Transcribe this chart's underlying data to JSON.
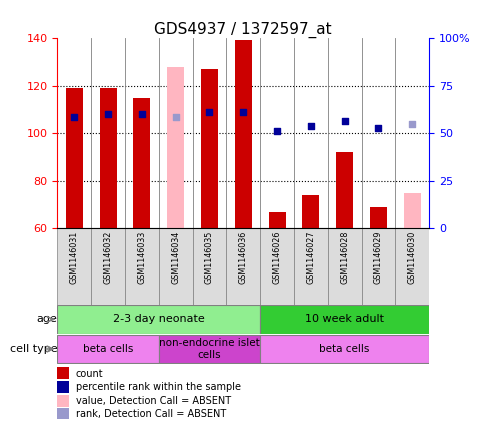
{
  "title": "GDS4937 / 1372597_at",
  "samples": [
    "GSM1146031",
    "GSM1146032",
    "GSM1146033",
    "GSM1146034",
    "GSM1146035",
    "GSM1146036",
    "GSM1146026",
    "GSM1146027",
    "GSM1146028",
    "GSM1146029",
    "GSM1146030"
  ],
  "count_values": [
    119,
    119,
    115,
    null,
    127,
    139,
    67,
    74,
    92,
    69,
    null
  ],
  "count_absent": [
    null,
    null,
    null,
    128,
    null,
    null,
    null,
    null,
    null,
    null,
    75
  ],
  "rank_values": [
    107,
    108,
    108,
    null,
    109,
    109,
    101,
    103,
    105,
    102,
    null
  ],
  "rank_absent": [
    null,
    null,
    null,
    107,
    null,
    null,
    null,
    null,
    null,
    null,
    104
  ],
  "ylim_left": [
    60,
    140
  ],
  "ylim_right": [
    0,
    100
  ],
  "yticks_left": [
    60,
    80,
    100,
    120,
    140
  ],
  "yticks_right": [
    0,
    25,
    50,
    75,
    100
  ],
  "ytick_labels_right": [
    "0",
    "25",
    "50",
    "75",
    "100%"
  ],
  "age_groups": [
    {
      "label": "2-3 day neonate",
      "start": 0,
      "end": 6,
      "color": "#90EE90"
    },
    {
      "label": "10 week adult",
      "start": 6,
      "end": 11,
      "color": "#33CC33"
    }
  ],
  "cell_type_groups": [
    {
      "label": "beta cells",
      "start": 0,
      "end": 3,
      "color": "#EE82EE"
    },
    {
      "label": "non-endocrine islet\ncells",
      "start": 3,
      "end": 6,
      "color": "#CC44CC"
    },
    {
      "label": "beta cells",
      "start": 6,
      "end": 11,
      "color": "#EE82EE"
    }
  ],
  "bar_width": 0.5,
  "count_color": "#CC0000",
  "count_absent_color": "#FFB6C1",
  "rank_color": "#000099",
  "rank_absent_color": "#9999CC",
  "bar_bottom": 60,
  "label_fontsize": 7,
  "title_fontsize": 11
}
